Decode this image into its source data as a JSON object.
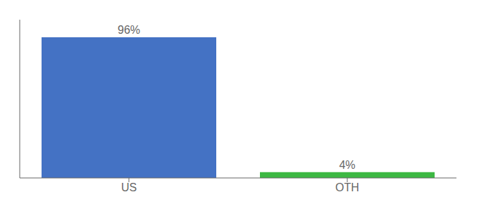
{
  "chart_data": {
    "type": "bar",
    "categories": [
      "US",
      "OTH"
    ],
    "values": [
      96,
      4
    ],
    "value_labels": [
      "96%",
      "4%"
    ],
    "colors": [
      "#4472c4",
      "#3db843"
    ],
    "ylim": [
      0,
      108
    ],
    "data_labels": true,
    "tick_labels": "x"
  }
}
